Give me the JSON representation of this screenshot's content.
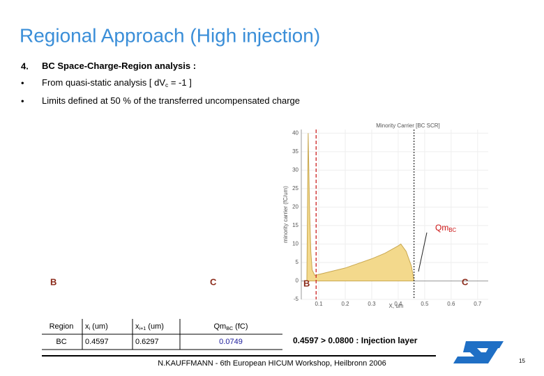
{
  "header": {
    "title": "Regional Approach (High injection)"
  },
  "bullets": [
    {
      "marker": "4.",
      "text": "BC Space-Charge-Region analysis :"
    },
    {
      "marker": "•",
      "text": "From quasi-static analysis [ dV",
      "sub": "c",
      "tail": " = -1 ]"
    },
    {
      "marker": "•",
      "text": "Limits defined at 50 % of the transferred uncompensated charge"
    }
  ],
  "region_labels": [
    "B",
    "C"
  ],
  "chart_data": {
    "type": "area",
    "title": "Minority Carrier [BC SCR]",
    "xlabel": "X, um",
    "ylabel": "minority carrier (fC/um)",
    "x": [
      0.055,
      0.06,
      0.065,
      0.07,
      0.075,
      0.085,
      0.2,
      0.3,
      0.35,
      0.4,
      0.41,
      0.43,
      0.45,
      0.46
    ],
    "values": [
      0,
      40,
      20,
      8,
      3,
      1.5,
      3.5,
      6,
      7.5,
      9.5,
      10,
      8,
      4,
      0
    ],
    "color": "#f3d98c",
    "line_color": "#c9a850",
    "xlim": [
      0.034,
      0.74
    ],
    "ylim": [
      -5,
      41
    ],
    "xticks": [
      0.1,
      0.2,
      0.3,
      0.4,
      0.5,
      0.6,
      0.7
    ],
    "yticks": [
      -5,
      0,
      5,
      10,
      15,
      20,
      25,
      30,
      35,
      40
    ],
    "vlines": [
      {
        "x": 0.09,
        "color": "#cc2222",
        "style": "dashed"
      },
      {
        "x": 0.4597,
        "color": "#333333",
        "style": "dotted"
      }
    ],
    "annotations": [
      {
        "text": "Qm",
        "sub": "BC"
      },
      {
        "text": "B"
      },
      {
        "text": "C"
      }
    ]
  },
  "table": {
    "header": [
      {
        "text": "Region"
      },
      {
        "text": "x",
        "sub": "i",
        "tail": " (um)"
      },
      {
        "text": "x",
        "sub": "i+1",
        "tail": " (um)"
      },
      {
        "text": "Qm",
        "sub": "BC",
        "tail": " (fC)"
      }
    ],
    "rows": [
      [
        "BC",
        "0.4597",
        "0.6297",
        "0.0749"
      ]
    ]
  },
  "note": "0.4597 > 0.0800 : Injection layer",
  "footer": {
    "text": "N.KAUFFMANN - 6th European HICUM Workshop, Heilbronn 2006",
    "page": 15
  }
}
